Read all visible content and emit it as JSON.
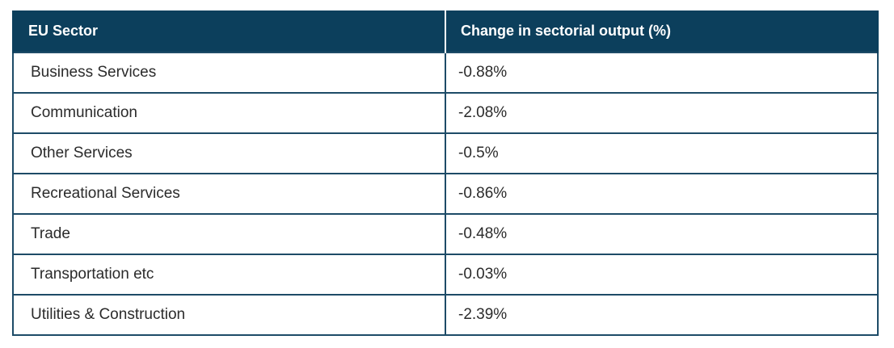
{
  "table": {
    "headers": [
      "EU Sector",
      "Change in sectorial output (%)"
    ],
    "rows": [
      [
        "Business Services",
        "-0.88%"
      ],
      [
        "Communication",
        "-2.08%"
      ],
      [
        "Other Services",
        "-0.5%"
      ],
      [
        "Recreational Services",
        "-0.86%"
      ],
      [
        "Trade",
        "-0.48%"
      ],
      [
        "Transportation etc",
        "-0.03%"
      ],
      [
        "Utilities & Construction",
        "-2.39%"
      ]
    ]
  },
  "colors": {
    "header_bg": "#0c3f5c",
    "header_text": "#ffffff",
    "border": "#1d4b67",
    "body_text": "#2b2b2b"
  }
}
